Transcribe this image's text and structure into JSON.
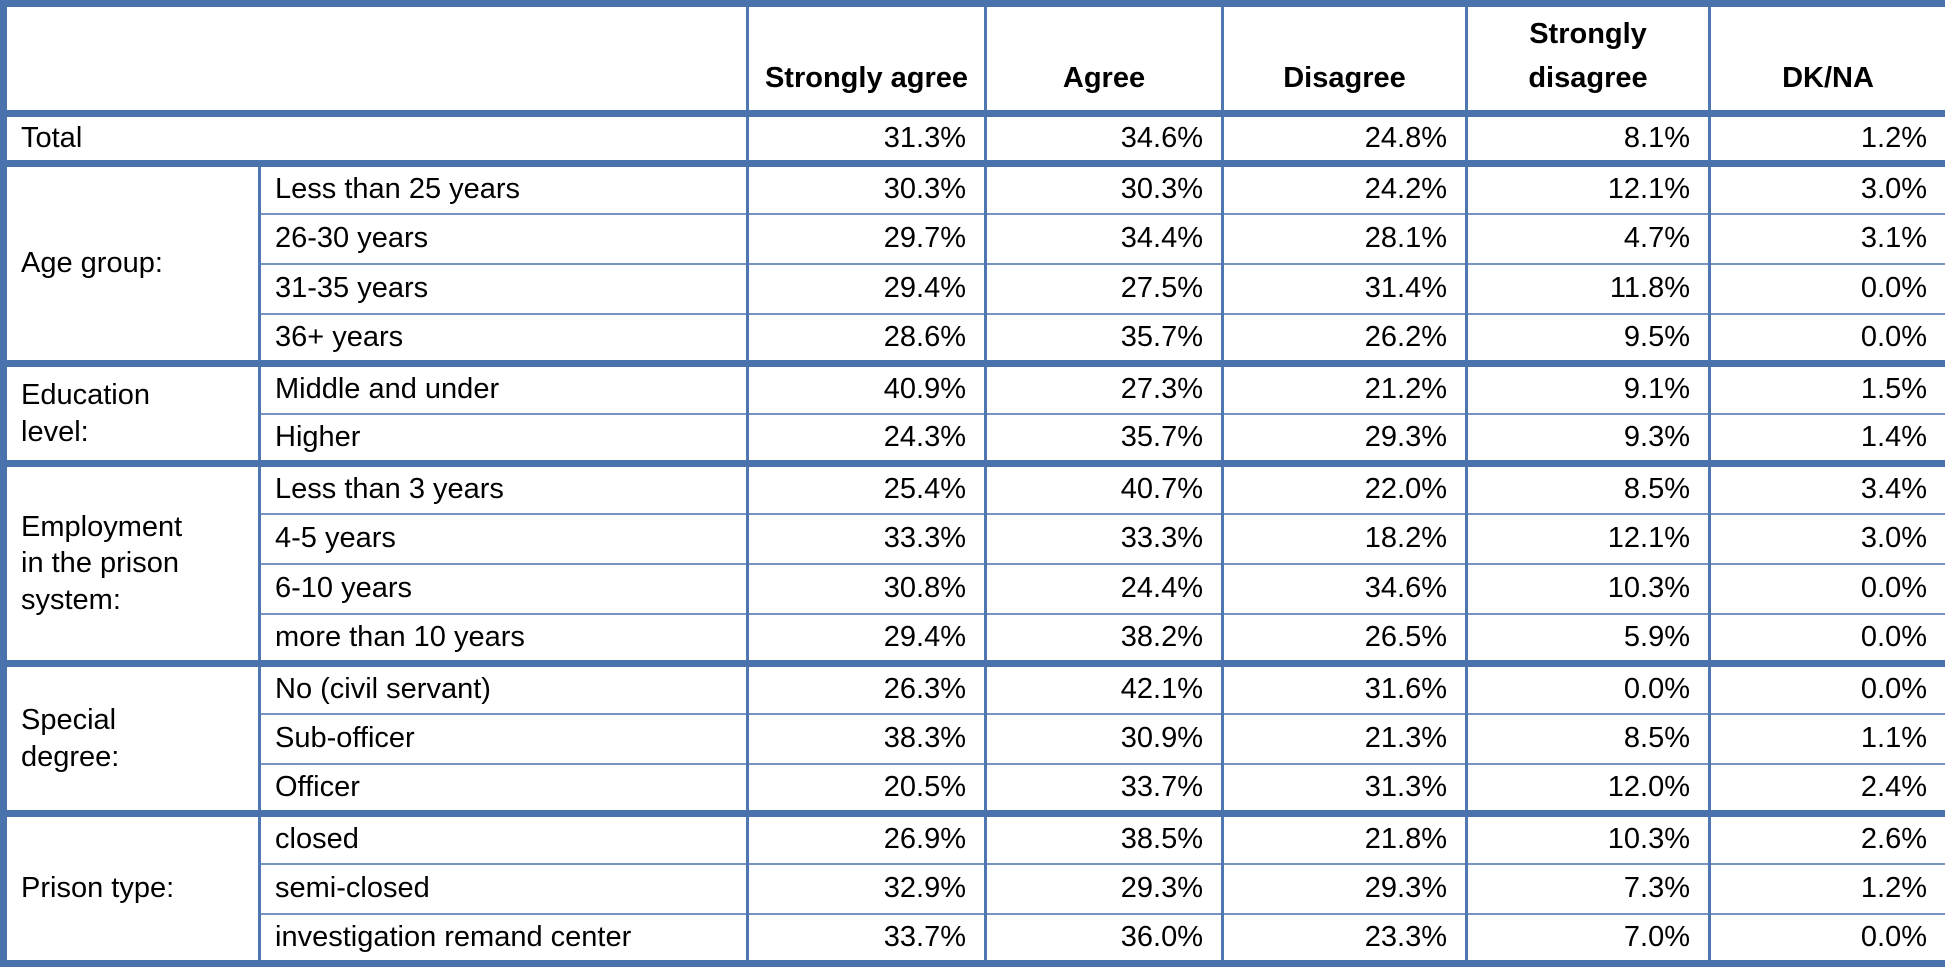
{
  "colors": {
    "border_thick": "#4a73ad",
    "border_thin_vertical": "#4f78b0",
    "border_thin_horizontal": "#7594c2",
    "text": "#000000",
    "background": "#ffffff"
  },
  "table": {
    "corner_label": "",
    "columns": [
      "Strongly agree",
      "Agree",
      "Disagree",
      "Strongly disagree",
      "DK/NA"
    ],
    "total": {
      "label": "Total",
      "values": [
        "31.3%",
        "34.6%",
        "24.8%",
        "8.1%",
        "1.2%"
      ]
    },
    "groups": [
      {
        "label": "Age group:",
        "rows": [
          {
            "label": "Less than 25 years",
            "values": [
              "30.3%",
              "30.3%",
              "24.2%",
              "12.1%",
              "3.0%"
            ]
          },
          {
            "label": "26-30 years",
            "values": [
              "29.7%",
              "34.4%",
              "28.1%",
              "4.7%",
              "3.1%"
            ]
          },
          {
            "label": "31-35 years",
            "values": [
              "29.4%",
              "27.5%",
              "31.4%",
              "11.8%",
              "0.0%"
            ]
          },
          {
            "label": "36+ years",
            "values": [
              "28.6%",
              "35.7%",
              "26.2%",
              "9.5%",
              "0.0%"
            ]
          }
        ]
      },
      {
        "label": "Education level:",
        "rows": [
          {
            "label": "Middle and under",
            "values": [
              "40.9%",
              "27.3%",
              "21.2%",
              "9.1%",
              "1.5%"
            ]
          },
          {
            "label": "Higher",
            "values": [
              "24.3%",
              "35.7%",
              "29.3%",
              "9.3%",
              "1.4%"
            ]
          }
        ]
      },
      {
        "label": "Employment in the prison system:",
        "rows": [
          {
            "label": "Less than 3 years",
            "values": [
              "25.4%",
              "40.7%",
              "22.0%",
              "8.5%",
              "3.4%"
            ]
          },
          {
            "label": "4-5 years",
            "values": [
              "33.3%",
              "33.3%",
              "18.2%",
              "12.1%",
              "3.0%"
            ]
          },
          {
            "label": "6-10 years",
            "values": [
              "30.8%",
              "24.4%",
              "34.6%",
              "10.3%",
              "0.0%"
            ]
          },
          {
            "label": "more than 10 years",
            "values": [
              "29.4%",
              "38.2%",
              "26.5%",
              "5.9%",
              "0.0%"
            ]
          }
        ]
      },
      {
        "label": "Special degree:",
        "rows": [
          {
            "label": "No (civil servant)",
            "values": [
              "26.3%",
              "42.1%",
              "31.6%",
              "0.0%",
              "0.0%"
            ]
          },
          {
            "label": "Sub-officer",
            "values": [
              "38.3%",
              "30.9%",
              "21.3%",
              "8.5%",
              "1.1%"
            ]
          },
          {
            "label": "Officer",
            "values": [
              "20.5%",
              "33.7%",
              "31.3%",
              "12.0%",
              "2.4%"
            ]
          }
        ]
      },
      {
        "label": "Prison type:",
        "rows": [
          {
            "label": "closed",
            "values": [
              "26.9%",
              "38.5%",
              "21.8%",
              "10.3%",
              "2.6%"
            ]
          },
          {
            "label": "semi-closed",
            "values": [
              "32.9%",
              "29.3%",
              "29.3%",
              "7.3%",
              "1.2%"
            ]
          },
          {
            "label": "investigation remand center",
            "values": [
              "33.7%",
              "36.0%",
              "23.3%",
              "7.0%",
              "0.0%"
            ]
          }
        ]
      }
    ]
  }
}
